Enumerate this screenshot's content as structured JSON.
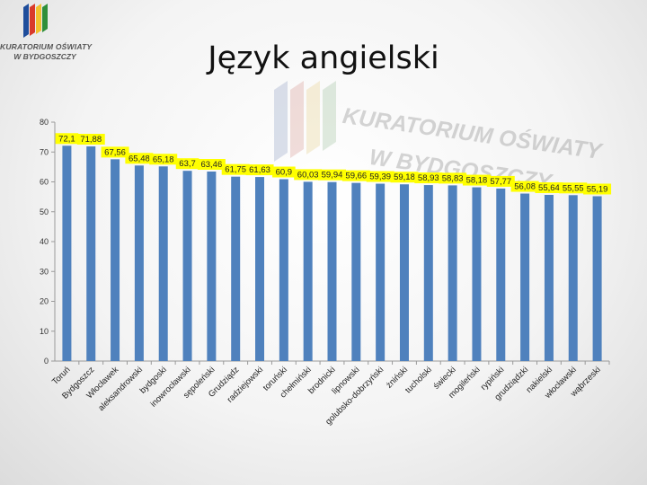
{
  "logo": {
    "line1": "KURATORIUM OŚWIATY",
    "line2": "W BYDGOSZCZY",
    "colors": [
      "#1f4e9c",
      "#d93a2b",
      "#f2c12e",
      "#2f8f3a"
    ]
  },
  "watermark": {
    "line1": "KURATORIUM OŚWIATY",
    "line2": "W BYDGOSZCZY"
  },
  "title": "Język angielski",
  "chart_data": {
    "type": "bar",
    "title": "Język angielski",
    "xlabel": "",
    "ylabel": "",
    "ylim": [
      0,
      80
    ],
    "yticks": [
      0,
      10,
      20,
      30,
      40,
      50,
      60,
      70,
      80
    ],
    "grid": false,
    "legend": "none",
    "bar_color": "#4f81bd",
    "label_highlight": "#ffff00",
    "categories": [
      "Toruń",
      "Bydgoszcz",
      "Włocławek",
      "aleksandrowski",
      "bydgoski",
      "inowrocławski",
      "sępoleński",
      "Grudziądz",
      "radziejowski",
      "toruński",
      "chełmiński",
      "brodnicki",
      "lipnowski",
      "golubsko-dobrzyński",
      "żniński",
      "tucholski",
      "świecki",
      "mogileński",
      "rypiński",
      "grudziądzki",
      "nakielski",
      "włocławski",
      "wąbrzeski"
    ],
    "values": [
      72.1,
      71.88,
      67.56,
      65.48,
      65.18,
      63.7,
      63.46,
      61.75,
      61.63,
      60.9,
      60.03,
      59.94,
      59.66,
      59.39,
      59.18,
      58.93,
      58.83,
      58.18,
      57.77,
      56.08,
      55.64,
      55.55,
      55.19
    ],
    "value_labels": [
      "72,1",
      "71,88",
      "67,56",
      "65,48",
      "65,18",
      "63,7",
      "63,46",
      "61,75",
      "61,63",
      "60,9",
      "60,03",
      "59,94",
      "59,66",
      "59,39",
      "59,18",
      "58,93",
      "58,83",
      "58,18",
      "57,77",
      "56,08",
      "55,64",
      "55,55",
      "55,19"
    ]
  }
}
